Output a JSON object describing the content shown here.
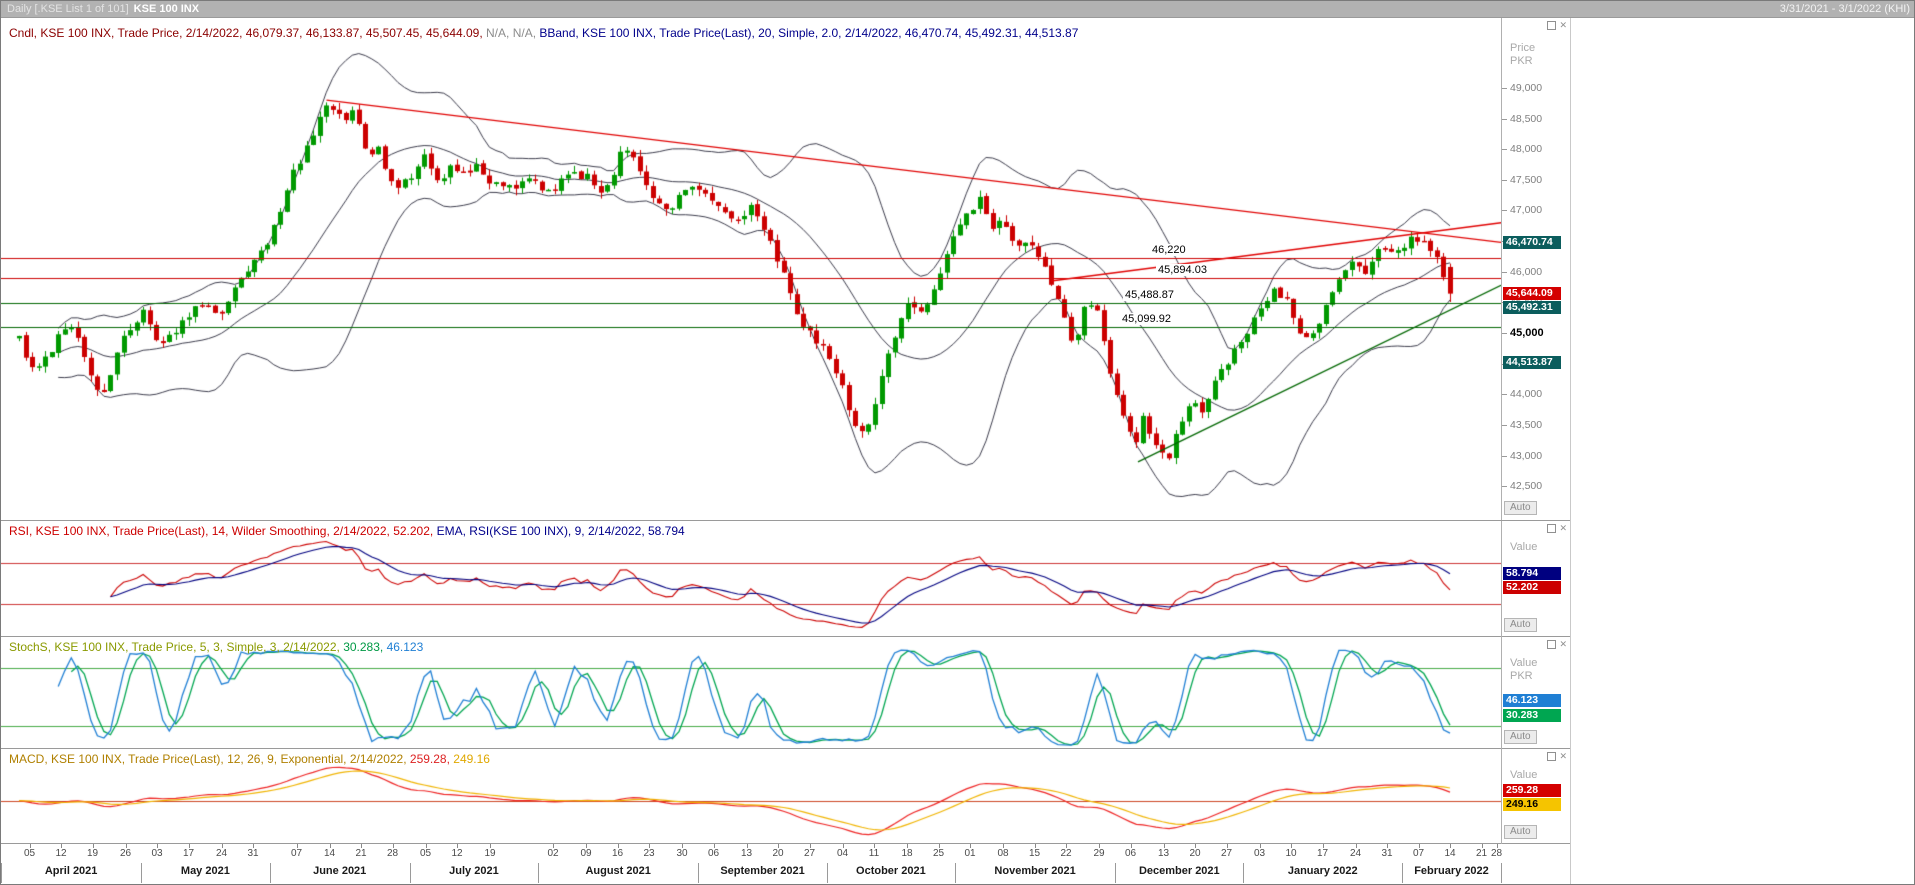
{
  "title_bar": {
    "left_prefix": "Daily [.KSE List 1 of 101]",
    "instrument": "KSE 100 INX",
    "date_range": "3/31/2021 - 3/1/2022 (KHI)"
  },
  "legends": {
    "main": [
      {
        "text": "Cndl, KSE 100 INX, Trade Price, 2/14/2022, 46,079.37, 46,133.87, 45,507.45, 45,644.09, ",
        "color": "#8b0000"
      },
      {
        "text": "N/A, N/A, ",
        "color": "#8c8c8c"
      },
      {
        "text": "BBand, KSE 100 INX, Trade Price(Last), 20, Simple, 2.0, 2/14/2022, 46,470.74, 45,492.31, 44,513.87",
        "color": "#00008b"
      }
    ],
    "rsi": [
      {
        "text": "RSI, KSE 100 INX, Trade Price(Last), 14, Wilder Smoothing, 2/14/2022, 52.202, ",
        "color": "#cc0000"
      },
      {
        "text": "EMA, RSI(KSE 100 INX), 9, 2/14/2022, 58.794",
        "color": "#00008b"
      }
    ],
    "stoch": [
      {
        "text": "StochS, KSE 100 INX, Trade Price, 5, 3, Simple, 3, 2/14/2022, ",
        "color": "#8a9a00"
      },
      {
        "text": "30.283, ",
        "color": "#009944"
      },
      {
        "text": "46.123",
        "color": "#1f7fd4"
      }
    ],
    "macd": [
      {
        "text": "MACD, KSE 100 INX, Trade Price(Last), 12, 26, 9, Exponential, 2/14/2022, ",
        "color": "#b08000"
      },
      {
        "text": "259.28, ",
        "color": "#dd2222"
      },
      {
        "text": "249.16",
        "color": "#e0a800"
      }
    ]
  },
  "gutters": {
    "main": {
      "axis_title": [
        "Price",
        "PKR"
      ],
      "auto_label": "Auto",
      "badges": [
        {
          "label": "46,470.74",
          "value": 46470.74,
          "bg": "#0b5d5d",
          "fg": "#ffffff"
        },
        {
          "label": "45,644.09",
          "value": 45644.09,
          "bg": "#d40000",
          "fg": "#ffffff"
        },
        {
          "label": "45,492.31",
          "value": 45492.31,
          "bg": "#0b5d5d",
          "fg": "#ffffff"
        },
        {
          "label": "44,513.87",
          "value": 44513.87,
          "bg": "#0b5d5d",
          "fg": "#ffffff"
        }
      ]
    },
    "rsi": {
      "axis_title": [
        "Value"
      ],
      "auto_label": "Auto",
      "badges": [
        {
          "label": "58.794",
          "value": 58.794,
          "bg": "#000080",
          "fg": "#ffffff"
        },
        {
          "label": "52.202",
          "value": 52.202,
          "bg": "#cc0000",
          "fg": "#ffffff"
        }
      ]
    },
    "stoch": {
      "axis_title": [
        "Value",
        "PKR"
      ],
      "auto_label": "Auto",
      "badges": [
        {
          "label": "46.123",
          "value": 46.123,
          "bg": "#1f7fd4",
          "fg": "#ffffff"
        },
        {
          "label": "30.283",
          "value": 30.283,
          "bg": "#00a651",
          "fg": "#ffffff"
        }
      ]
    },
    "macd": {
      "axis_title": [
        "Value"
      ],
      "auto_label": "Auto",
      "badges": [
        {
          "label": "259.28",
          "value": 259.28,
          "bg": "#d40000",
          "fg": "#ffffff"
        },
        {
          "label": "249.16",
          "value": 249.16,
          "bg": "#f5c400",
          "fg": "#000000"
        }
      ]
    }
  },
  "chart_data": [
    {
      "type": "candlestick",
      "title": "KSE 100 INX, Daily",
      "series": "Trade Price",
      "interval": "Daily",
      "date_range": "3/31/2021 - 3/1/2022",
      "last": {
        "date": "2/14/2022",
        "open": 46079.37,
        "high": 46133.87,
        "low": 45507.45,
        "close": 45644.09
      },
      "bollinger": {
        "period": 20,
        "method": "Simple",
        "stdev": 2.0,
        "date": "2/14/2022",
        "upper": 46470.74,
        "middle": 45492.31,
        "lower": 44513.87
      },
      "y_axis": {
        "unit": "PKR",
        "min": 42050,
        "max": 49650,
        "tick_min": 42500,
        "tick_max": 49000,
        "tick_step": 500,
        "bold_tick": 45000
      },
      "up_color": "#009900",
      "down_color": "#cc0000",
      "band_color": "#3a3a4a",
      "levels": [
        {
          "value": 46220,
          "label": "46,220",
          "color": "#cc0000",
          "label_x": 0.766
        },
        {
          "value": 45894.03,
          "label": "45,894.03",
          "color": "#cc0000",
          "label_x": 0.77
        },
        {
          "value": 45488.87,
          "label": "45,488.87",
          "color": "#006600",
          "label_x": 0.748
        },
        {
          "value": 45099.92,
          "label": "45,099.92",
          "color": "#006600",
          "label_x": 0.746
        }
      ],
      "trend_lines": [
        {
          "x1": 0.217,
          "p1": 48800,
          "x2": 1.0,
          "p2": 46480,
          "color": "#e00000"
        },
        {
          "x1": 0.7,
          "p1": 45850,
          "x2": 1.0,
          "p2": 46800,
          "color": "#e00000"
        },
        {
          "x1": 0.758,
          "p1": 42900,
          "x2": 1.0,
          "p2": 45780,
          "color": "#006600"
        }
      ],
      "candle_count": 220,
      "first_x": 0.012,
      "last_x": 0.966,
      "price_path": [
        [
          0.012,
          44900
        ],
        [
          0.022,
          44350
        ],
        [
          0.035,
          44750
        ],
        [
          0.045,
          45250
        ],
        [
          0.058,
          44500
        ],
        [
          0.067,
          43950
        ],
        [
          0.08,
          44900
        ],
        [
          0.095,
          45350
        ],
        [
          0.105,
          44800
        ],
        [
          0.118,
          45100
        ],
        [
          0.13,
          45450
        ],
        [
          0.147,
          45300
        ],
        [
          0.16,
          45900
        ],
        [
          0.17,
          46250
        ],
        [
          0.18,
          46600
        ],
        [
          0.195,
          47600
        ],
        [
          0.21,
          48400
        ],
        [
          0.218,
          48800
        ],
        [
          0.228,
          48500
        ],
        [
          0.235,
          48600
        ],
        [
          0.245,
          47900
        ],
        [
          0.252,
          48000
        ],
        [
          0.262,
          47350
        ],
        [
          0.272,
          47500
        ],
        [
          0.283,
          47900
        ],
        [
          0.292,
          47450
        ],
        [
          0.3,
          47750
        ],
        [
          0.31,
          47600
        ],
        [
          0.318,
          47750
        ],
        [
          0.326,
          47500
        ],
        [
          0.34,
          47350
        ],
        [
          0.352,
          47500
        ],
        [
          0.366,
          47300
        ],
        [
          0.378,
          47550
        ],
        [
          0.39,
          47600
        ],
        [
          0.402,
          47250
        ],
        [
          0.413,
          47900
        ],
        [
          0.42,
          48000
        ],
        [
          0.432,
          47300
        ],
        [
          0.444,
          46950
        ],
        [
          0.455,
          47350
        ],
        [
          0.466,
          47300
        ],
        [
          0.478,
          47100
        ],
        [
          0.49,
          46850
        ],
        [
          0.5,
          47050
        ],
        [
          0.512,
          46600
        ],
        [
          0.522,
          45900
        ],
        [
          0.532,
          45250
        ],
        [
          0.54,
          44950
        ],
        [
          0.55,
          44700
        ],
        [
          0.558,
          44350
        ],
        [
          0.568,
          43600
        ],
        [
          0.575,
          43300
        ],
        [
          0.585,
          44100
        ],
        [
          0.595,
          44900
        ],
        [
          0.605,
          45500
        ],
        [
          0.615,
          45300
        ],
        [
          0.625,
          45900
        ],
        [
          0.635,
          46550
        ],
        [
          0.645,
          46950
        ],
        [
          0.652,
          47250
        ],
        [
          0.66,
          46600
        ],
        [
          0.668,
          46900
        ],
        [
          0.676,
          46300
        ],
        [
          0.684,
          46500
        ],
        [
          0.692,
          46300
        ],
        [
          0.7,
          45800
        ],
        [
          0.708,
          45300
        ],
        [
          0.716,
          44750
        ],
        [
          0.724,
          45550
        ],
        [
          0.732,
          45350
        ],
        [
          0.74,
          44300
        ],
        [
          0.748,
          43600
        ],
        [
          0.756,
          43200
        ],
        [
          0.762,
          43700
        ],
        [
          0.77,
          43100
        ],
        [
          0.778,
          42950
        ],
        [
          0.786,
          43500
        ],
        [
          0.794,
          43900
        ],
        [
          0.802,
          43650
        ],
        [
          0.81,
          44250
        ],
        [
          0.818,
          44550
        ],
        [
          0.828,
          44900
        ],
        [
          0.838,
          45350
        ],
        [
          0.848,
          45700
        ],
        [
          0.858,
          45500
        ],
        [
          0.866,
          45000
        ],
        [
          0.874,
          44900
        ],
        [
          0.882,
          45350
        ],
        [
          0.89,
          45800
        ],
        [
          0.9,
          46150
        ],
        [
          0.91,
          45950
        ],
        [
          0.92,
          46400
        ],
        [
          0.93,
          46300
        ],
        [
          0.94,
          46600
        ],
        [
          0.95,
          46400
        ],
        [
          0.958,
          46150
        ],
        [
          0.966,
          45650
        ]
      ],
      "x_axis": {
        "week_ticks": [
          {
            "label": "05",
            "x": 0.019
          },
          {
            "label": "12",
            "x": 0.04
          },
          {
            "label": "19",
            "x": 0.061
          },
          {
            "label": "26",
            "x": 0.083
          },
          {
            "label": "03",
            "x": 0.104
          },
          {
            "label": "17",
            "x": 0.125
          },
          {
            "label": "24",
            "x": 0.147
          },
          {
            "label": "31",
            "x": 0.168
          },
          {
            "label": "07",
            "x": 0.197
          },
          {
            "label": "14",
            "x": 0.219
          },
          {
            "label": "21",
            "x": 0.24
          },
          {
            "label": "28",
            "x": 0.261
          },
          {
            "label": "05",
            "x": 0.283
          },
          {
            "label": "12",
            "x": 0.304
          },
          {
            "label": "19",
            "x": 0.326
          },
          {
            "label": "02",
            "x": 0.368
          },
          {
            "label": "09",
            "x": 0.39
          },
          {
            "label": "16",
            "x": 0.411
          },
          {
            "label": "23",
            "x": 0.432
          },
          {
            "label": "30",
            "x": 0.454
          },
          {
            "label": "06",
            "x": 0.475
          },
          {
            "label": "13",
            "x": 0.497
          },
          {
            "label": "20",
            "x": 0.518
          },
          {
            "label": "27",
            "x": 0.539
          },
          {
            "label": "04",
            "x": 0.561
          },
          {
            "label": "11",
            "x": 0.582
          },
          {
            "label": "18",
            "x": 0.604
          },
          {
            "label": "25",
            "x": 0.625
          },
          {
            "label": "01",
            "x": 0.646
          },
          {
            "label": "08",
            "x": 0.668
          },
          {
            "label": "15",
            "x": 0.689
          },
          {
            "label": "22",
            "x": 0.71
          },
          {
            "label": "29",
            "x": 0.732
          },
          {
            "label": "06",
            "x": 0.753
          },
          {
            "label": "13",
            "x": 0.775
          },
          {
            "label": "20",
            "x": 0.796
          },
          {
            "label": "27",
            "x": 0.817
          },
          {
            "label": "03",
            "x": 0.839
          },
          {
            "label": "10",
            "x": 0.86
          },
          {
            "label": "17",
            "x": 0.881
          },
          {
            "label": "24",
            "x": 0.903
          },
          {
            "label": "31",
            "x": 0.924
          },
          {
            "label": "07",
            "x": 0.945
          },
          {
            "label": "14",
            "x": 0.966
          },
          {
            "label": "21",
            "x": 0.987
          },
          {
            "label": "28",
            "x": 0.997
          }
        ],
        "months": [
          {
            "label": "April 2021",
            "x1": 0.0,
            "x2": 0.0935
          },
          {
            "label": "May 2021",
            "x1": 0.0935,
            "x2": 0.179
          },
          {
            "label": "June 2021",
            "x1": 0.179,
            "x2": 0.2726
          },
          {
            "label": "July 2021",
            "x1": 0.2726,
            "x2": 0.358
          },
          {
            "label": "August 2021",
            "x1": 0.358,
            "x2": 0.4649
          },
          {
            "label": "September 2021",
            "x1": 0.4649,
            "x2": 0.5505
          },
          {
            "label": "October 2021",
            "x1": 0.5505,
            "x2": 0.636
          },
          {
            "label": "November 2021",
            "x1": 0.636,
            "x2": 0.7428
          },
          {
            "label": "December 2021",
            "x1": 0.7428,
            "x2": 0.8283
          },
          {
            "label": "January 2022",
            "x1": 0.8283,
            "x2": 0.934
          },
          {
            "label": "February 2022",
            "x1": 0.934,
            "x2": 1.0
          }
        ]
      }
    },
    {
      "type": "line",
      "name": "RSI",
      "source": "Trade Price(Last)",
      "period": 14,
      "smoothing": "Wilder Smoothing",
      "date": "2/14/2022",
      "value": 52.202,
      "ema": {
        "name": "EMA",
        "period": 9,
        "value": 58.794
      },
      "levels": [
        {
          "value": 30,
          "color": "#cc3333"
        },
        {
          "value": 70,
          "color": "#cc3333"
        }
      ],
      "range": [
        0,
        100
      ],
      "colors": {
        "rsi": "#cc0000",
        "ema": "#000080"
      }
    },
    {
      "type": "line",
      "name": "StochS",
      "source": "Trade Price",
      "params": [
        5,
        3,
        "Simple",
        3
      ],
      "date": "2/14/2022",
      "d": 30.283,
      "k": 46.123,
      "levels": [
        {
          "value": 20,
          "color": "#44aa44"
        },
        {
          "value": 80,
          "color": "#44aa44"
        }
      ],
      "range": [
        0,
        100
      ],
      "colors": {
        "k": "#1f7fd4",
        "d": "#00a651"
      }
    },
    {
      "type": "line",
      "name": "MACD",
      "source": "Trade Price(Last)",
      "params": [
        12,
        26,
        9,
        "Exponential"
      ],
      "date": "2/14/2022",
      "macd": 259.28,
      "signal": 249.16,
      "levels": [
        {
          "value": 0,
          "color": "#cc4422"
        }
      ],
      "colors": {
        "macd": "#ee2222",
        "signal": "#f0b400"
      }
    }
  ]
}
